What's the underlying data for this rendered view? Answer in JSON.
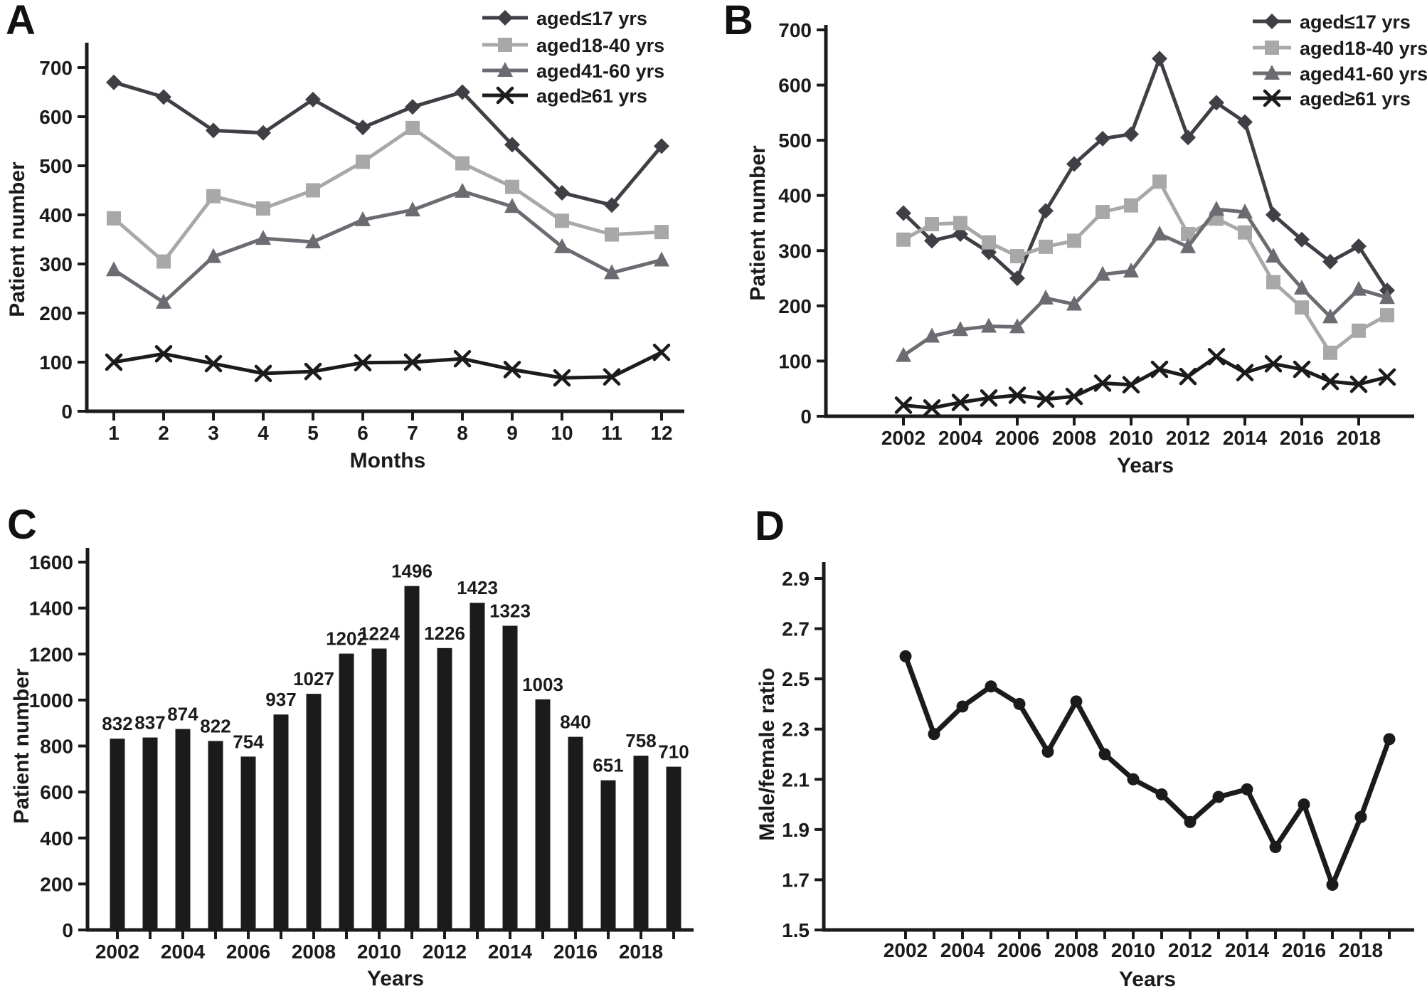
{
  "figure_background": "#ffffff",
  "text_color": "#1b1b1b",
  "chart_data": [
    {
      "panel_label": "A",
      "type": "line",
      "xlabel": "Months",
      "ylabel": "Patient number",
      "ylim": [
        0,
        700
      ],
      "yticks": [
        0,
        100,
        200,
        300,
        400,
        500,
        600,
        700
      ],
      "ytick_labels": [
        "0",
        "100",
        "200",
        "300",
        "400",
        "500",
        "600",
        "700"
      ],
      "categories": [
        1,
        2,
        3,
        4,
        5,
        6,
        7,
        8,
        9,
        10,
        11,
        12
      ],
      "xtick_values": [
        1,
        2,
        3,
        4,
        5,
        6,
        7,
        8,
        9,
        10,
        11,
        12
      ],
      "xtick_labels": [
        "1",
        "2",
        "3",
        "4",
        "5",
        "6",
        "7",
        "8",
        "9",
        "10",
        "11",
        "12"
      ],
      "legend_position": "top-right-inside",
      "series": [
        {
          "name": "aged≤17 yrs",
          "marker": "diamond",
          "color": "#3f3f46",
          "values": [
            670,
            640,
            572,
            567,
            635,
            578,
            620,
            650,
            543,
            445,
            420,
            540
          ]
        },
        {
          "name": "aged18-40 yrs",
          "marker": "square",
          "color": "#a8a8a8",
          "values": [
            393,
            305,
            438,
            413,
            450,
            508,
            577,
            505,
            457,
            388,
            360,
            365
          ]
        },
        {
          "name": "aged41-60 yrs",
          "marker": "triangle",
          "color": "#6b6b71",
          "values": [
            288,
            222,
            315,
            352,
            345,
            390,
            410,
            448,
            417,
            335,
            282,
            308
          ]
        },
        {
          "name": "aged≥61 yrs",
          "marker": "x",
          "color": "#1b1b1b",
          "values": [
            100,
            117,
            97,
            77,
            81,
            99,
            100,
            107,
            85,
            68,
            70,
            120
          ]
        }
      ]
    },
    {
      "panel_label": "B",
      "type": "line",
      "xlabel": "Years",
      "ylabel": "Patient number",
      "ylim": [
        0,
        700
      ],
      "yticks": [
        0,
        100,
        200,
        300,
        400,
        500,
        600,
        700
      ],
      "ytick_labels": [
        "0",
        "100",
        "200",
        "300",
        "400",
        "500",
        "600",
        "700"
      ],
      "categories": [
        2002,
        2003,
        2004,
        2005,
        2006,
        2007,
        2008,
        2009,
        2010,
        2011,
        2012,
        2013,
        2014,
        2015,
        2016,
        2017,
        2018,
        2019
      ],
      "xtick_values": [
        2002,
        2004,
        2006,
        2008,
        2010,
        2012,
        2014,
        2016,
        2018
      ],
      "xtick_labels": [
        "2002",
        "2004",
        "2006",
        "2008",
        "2010",
        "2012",
        "2014",
        "2016",
        "2018"
      ],
      "legend_position": "top-right-inside",
      "series": [
        {
          "name": "aged≤17 yrs",
          "marker": "diamond",
          "color": "#3f3f46",
          "values": [
            368,
            318,
            330,
            297,
            250,
            372,
            457,
            503,
            511,
            648,
            505,
            568,
            533,
            365,
            320,
            280,
            308,
            228
          ]
        },
        {
          "name": "aged18-40 yrs",
          "marker": "square",
          "color": "#a8a8a8",
          "values": [
            320,
            348,
            350,
            315,
            290,
            307,
            318,
            370,
            382,
            425,
            330,
            358,
            333,
            243,
            197,
            115,
            155,
            183
          ]
        },
        {
          "name": "aged41-60 yrs",
          "marker": "triangle",
          "color": "#6b6b71",
          "values": [
            110,
            145,
            157,
            163,
            162,
            214,
            203,
            257,
            263,
            330,
            307,
            375,
            370,
            290,
            232,
            180,
            230,
            215
          ]
        },
        {
          "name": "aged≥61 yrs",
          "marker": "x",
          "color": "#1b1b1b",
          "values": [
            20,
            15,
            25,
            33,
            38,
            31,
            36,
            60,
            57,
            85,
            72,
            108,
            79,
            95,
            85,
            63,
            58,
            71
          ]
        }
      ]
    },
    {
      "panel_label": "C",
      "type": "bar",
      "xlabel": "Years",
      "ylabel": "Patient number",
      "ylim": [
        0,
        1600
      ],
      "yticks": [
        0,
        200,
        400,
        600,
        800,
        1000,
        1200,
        1400,
        1600
      ],
      "ytick_labels": [
        "0",
        "200",
        "400",
        "600",
        "800",
        "1000",
        "1200",
        "1400",
        "1600"
      ],
      "categories": [
        2002,
        2003,
        2004,
        2005,
        2006,
        2007,
        2008,
        2009,
        2010,
        2011,
        2012,
        2013,
        2014,
        2015,
        2016,
        2017,
        2018,
        2019
      ],
      "xtick_values": [
        2002,
        2004,
        2006,
        2008,
        2010,
        2012,
        2014,
        2016,
        2018
      ],
      "xtick_labels": [
        "2002",
        "2004",
        "2006",
        "2008",
        "2010",
        "2012",
        "2014",
        "2016",
        "2018"
      ],
      "bar_color": "#1b1b1b",
      "values": [
        832,
        837,
        874,
        822,
        754,
        937,
        1027,
        1202,
        1224,
        1496,
        1226,
        1423,
        1323,
        1003,
        840,
        651,
        758,
        710
      ],
      "data_labels": [
        "832",
        "837",
        "874",
        "822",
        "754",
        "937",
        "1027",
        "1202",
        "1224",
        "1496",
        "1226",
        "1423",
        "1323",
        "1003",
        "840",
        "651",
        "758",
        "710"
      ]
    },
    {
      "panel_label": "D",
      "type": "line",
      "xlabel": "Years",
      "ylabel": "Male/female ratio",
      "ylim": [
        1.5,
        2.9
      ],
      "yticks": [
        1.5,
        1.7,
        1.9,
        2.1,
        2.3,
        2.5,
        2.7,
        2.9
      ],
      "ytick_labels": [
        "1.5",
        "1.7",
        "1.9",
        "2.1",
        "2.3",
        "2.5",
        "2.7",
        "2.9"
      ],
      "categories": [
        2002,
        2003,
        2004,
        2005,
        2006,
        2007,
        2008,
        2009,
        2010,
        2011,
        2012,
        2013,
        2014,
        2015,
        2016,
        2017,
        2018,
        2019
      ],
      "xtick_values": [
        2002,
        2004,
        2006,
        2008,
        2010,
        2012,
        2014,
        2016,
        2018
      ],
      "xtick_labels": [
        "2002",
        "2004",
        "2006",
        "2008",
        "2010",
        "2012",
        "2014",
        "2016",
        "2018"
      ],
      "legend_position": "none",
      "series": [
        {
          "name": "Male/female ratio",
          "marker": "circle",
          "color": "#1b1b1b",
          "values": [
            2.59,
            2.28,
            2.39,
            2.47,
            2.4,
            2.21,
            2.41,
            2.2,
            2.1,
            2.04,
            1.93,
            2.03,
            2.06,
            1.83,
            2.0,
            1.68,
            1.95,
            2.26
          ]
        }
      ]
    }
  ]
}
